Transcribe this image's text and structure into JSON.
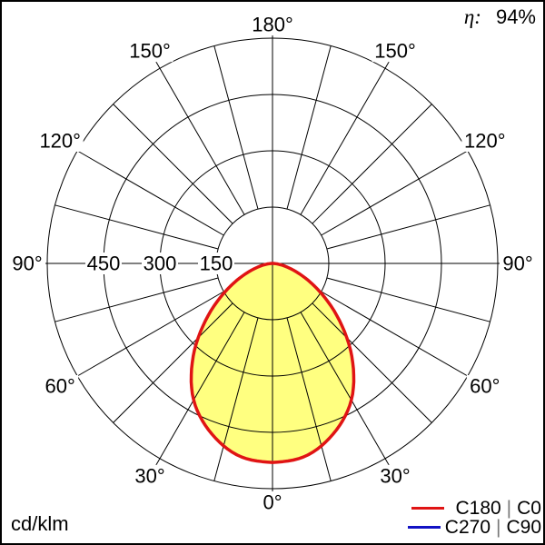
{
  "header": {
    "efficiency_label": "η:",
    "efficiency_value": "94%"
  },
  "footer": {
    "unit_label": "cd/klm"
  },
  "legend": {
    "entries": [
      {
        "label": "C180 | C0",
        "parts": [
          "C180",
          "C0"
        ],
        "separator": "|",
        "color": "#e01414"
      },
      {
        "label": "C270 | C90",
        "parts": [
          "C270",
          "C90"
        ],
        "separator": "|",
        "color": "#1212c4"
      }
    ]
  },
  "chart_data": {
    "type": "polar",
    "description": "Luminous intensity distribution curve (photometric polar diagram), gamma measured from nadir (0° bottom) to zenith (180° top), symmetric about vertical axis",
    "unit": "cd/klm",
    "efficiency_percent": 94,
    "gamma_deg": [
      0,
      10,
      20,
      30,
      40,
      50,
      60,
      70,
      80,
      90
    ],
    "series": [
      {
        "name": "C180 | C0",
        "color": "#e01414",
        "fill": "#ffff80",
        "values_cd_per_klm": [
          530,
          520,
          480,
          420,
          330,
          230,
          140,
          70,
          25,
          0
        ]
      },
      {
        "name": "C270 | C90",
        "color": "#1212c4",
        "fill": null,
        "values_cd_per_klm": [
          530,
          520,
          480,
          420,
          330,
          230,
          140,
          70,
          25,
          0
        ],
        "note": "coincident with C180 | C0, hidden beneath red curve"
      }
    ],
    "radial_ticks": [
      150,
      300,
      450
    ],
    "radial_tick_labels": [
      "150",
      "300",
      "450"
    ],
    "radial_max": 600,
    "radial_grid_inner": 150,
    "grid_step_deg": 15,
    "angle_label_step_deg": 30,
    "angle_labels": [
      {
        "deg": 0,
        "text": "0°"
      },
      {
        "deg": 30,
        "text": "30°"
      },
      {
        "deg": 60,
        "text": "60°"
      },
      {
        "deg": 90,
        "text": "90°"
      },
      {
        "deg": 120,
        "text": "120°"
      },
      {
        "deg": 150,
        "text": "150°"
      },
      {
        "deg": 180,
        "text": "180°"
      }
    ],
    "legend_position": "bottom-right",
    "grid": true
  }
}
